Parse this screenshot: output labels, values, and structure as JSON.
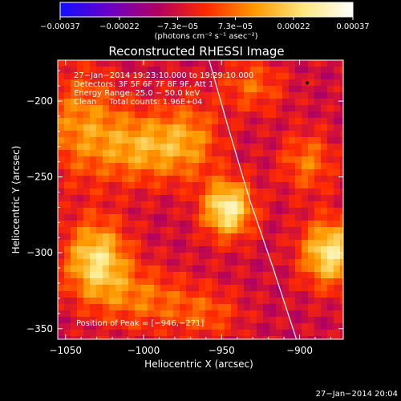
{
  "chart_data": {
    "type": "heatmap",
    "title": "Reconstructed RHESSI Image",
    "xlabel": "Heliocentric X (arcsec)",
    "ylabel": "Heliocentric Y (arcsec)",
    "xlim": [
      -1055,
      -872
    ],
    "ylim": [
      -357,
      -173
    ],
    "x_ticks": [
      -1050,
      -1000,
      -950,
      -900
    ],
    "y_ticks": [
      -200,
      -250,
      -300,
      -350
    ],
    "x_tick_labels": [
      "−1050",
      "−1000",
      "−950",
      "−900"
    ],
    "y_tick_labels": [
      "−200",
      "−250",
      "−300",
      "−350"
    ],
    "colorbar": {
      "range": [
        -0.00037,
        0.00037
      ],
      "ticks": [
        -0.00037,
        -0.00022,
        -7.3e-05,
        7.3e-05,
        0.00022,
        0.00037
      ],
      "tick_labels": [
        "−0.00037",
        "−0.00022",
        "−7.3e−05",
        "7.3e−05",
        "0.00022",
        "0.00037"
      ],
      "unit_label": "(photons cm⁻² s⁻¹ asec⁻²)",
      "colormap": [
        "#1010ff",
        "#6a00c8",
        "#b00060",
        "#ff2a00",
        "#ff9a00",
        "#ffe880",
        "#ffffff"
      ]
    },
    "annotations": [
      "27−Jan−2014 19:23:10.000 to 19:29:10.000",
      "Detectors: 3F 5F 6F 7F 8F 9F, Att 1",
      "Energy Range: 25.0 − 50.0 keV",
      "Clean     Total counts: 1.96E+04"
    ],
    "peak_label": "Position of Peak = [−946,−271]",
    "peak": [
      -946,
      -271
    ],
    "limb": [
      [
        -958,
        -173
      ],
      [
        -945,
        -220
      ],
      [
        -932,
        -265
      ],
      [
        -917,
        -310
      ],
      [
        -902,
        -357
      ]
    ],
    "sources": [
      {
        "x": -1040,
        "y": -215,
        "amp": 0.00018,
        "sx": 18,
        "sy": 25
      },
      {
        "x": -1030,
        "y": -305,
        "amp": 0.00032,
        "sx": 14,
        "sy": 18
      },
      {
        "x": -1000,
        "y": -230,
        "amp": 0.00022,
        "sx": 20,
        "sy": 16
      },
      {
        "x": -970,
        "y": -225,
        "amp": 0.00015,
        "sx": 14,
        "sy": 18
      },
      {
        "x": -946,
        "y": -271,
        "amp": 0.00037,
        "sx": 11,
        "sy": 13
      },
      {
        "x": -1000,
        "y": -330,
        "amp": 0.00015,
        "sx": 20,
        "sy": 14
      },
      {
        "x": -880,
        "y": -300,
        "amp": 0.00034,
        "sx": 13,
        "sy": 15
      },
      {
        "x": -895,
        "y": -240,
        "amp": 0.00016,
        "sx": 12,
        "sy": 14
      },
      {
        "x": -930,
        "y": -190,
        "amp": 0.00014,
        "sx": 14,
        "sy": 12
      },
      {
        "x": -960,
        "y": -340,
        "amp": 0.00012,
        "sx": 16,
        "sy": 12
      }
    ],
    "background": -8e-05
  },
  "footer": {
    "timestamp": "27−Jan−2014 20:04"
  }
}
